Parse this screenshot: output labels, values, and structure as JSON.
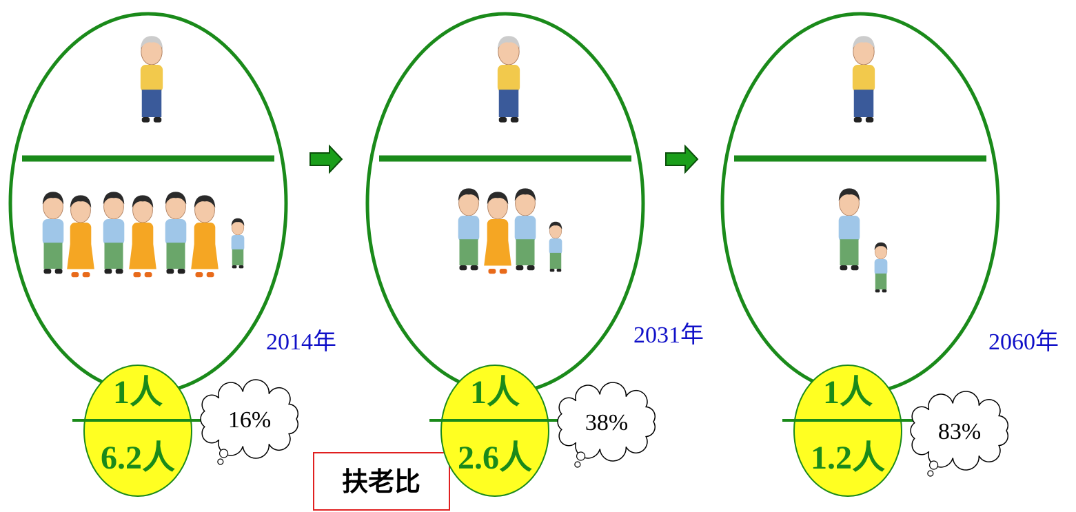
{
  "panels": [
    {
      "year": "2014年",
      "top": "1人",
      "bottom": "6.2人",
      "ratio": "16%"
    },
    {
      "year": "2031年",
      "top": "1人",
      "bottom": "2.6人",
      "ratio": "38%"
    },
    {
      "year": "2060年",
      "top": "1人",
      "bottom": "1.2人",
      "ratio": "83%"
    }
  ],
  "label": "扶老比"
}
